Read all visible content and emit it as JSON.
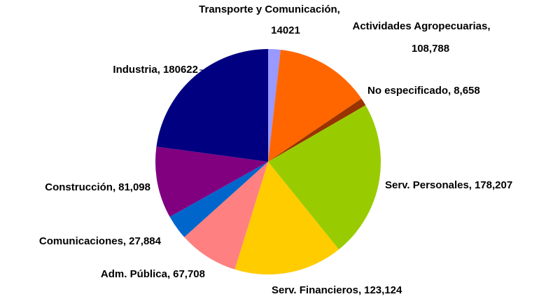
{
  "chart_data": {
    "type": "pie",
    "categories": [
      "Transporte y Comunicación,",
      "Actividades Agropecuarias,",
      "No especificado,",
      "Serv. Personales,",
      "Serv. Financieros,",
      "Adm. Pública,",
      "Comunicaciones,",
      "Construcción,",
      "Industria,"
    ],
    "values": [
      14021,
      108788,
      8658,
      178207,
      123124,
      67708,
      27884,
      81098,
      180622
    ],
    "value_labels": [
      "14021",
      "108,788",
      "8,658",
      "178,207",
      "123,124",
      "67,708",
      "27,884",
      "81,098",
      "180622"
    ],
    "colors": [
      "#9999ff",
      "#ff6600",
      "#993300",
      "#99cc00",
      "#ffcc00",
      "#ff8080",
      "#0066cc",
      "#800080",
      "#000080"
    ]
  }
}
